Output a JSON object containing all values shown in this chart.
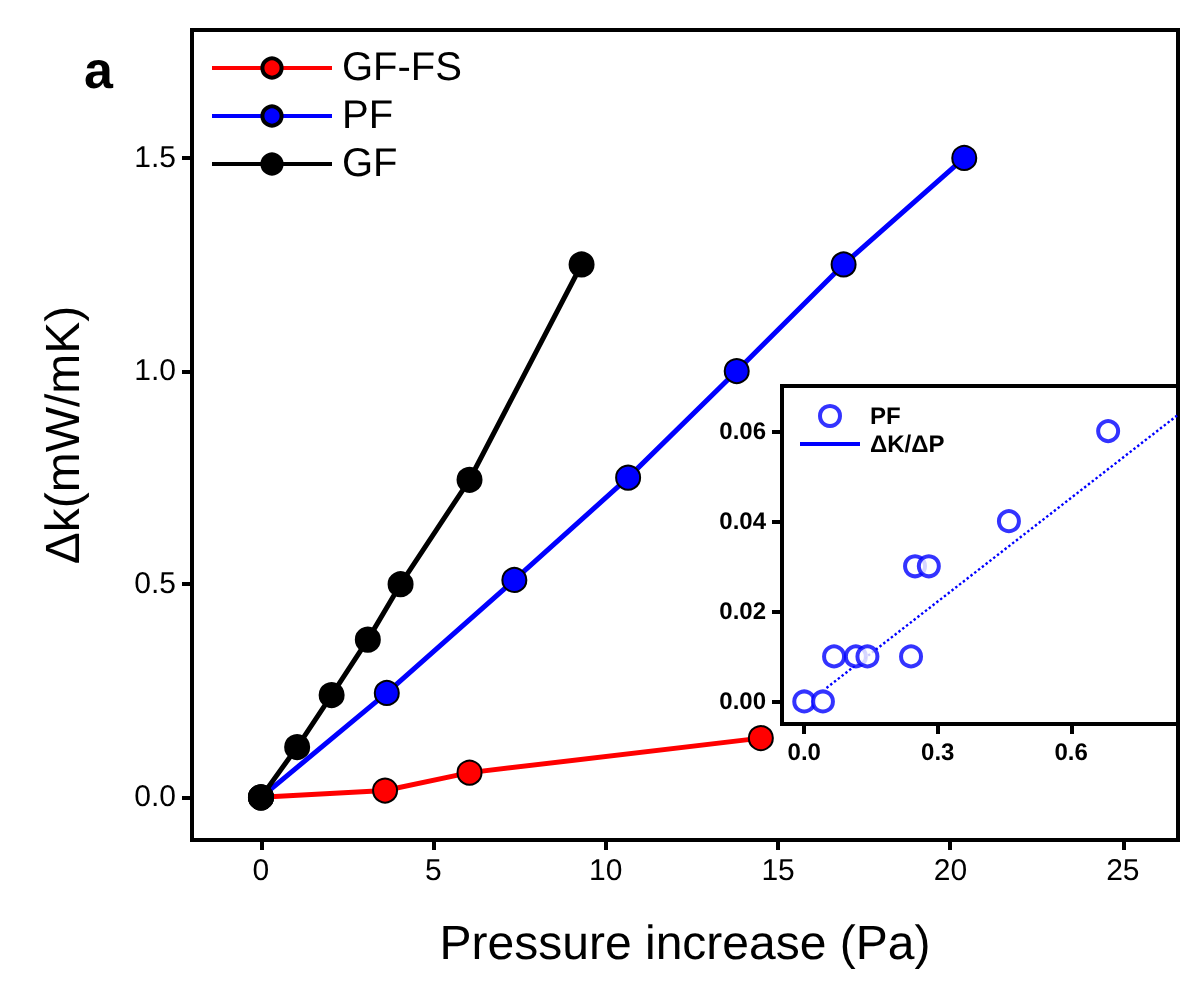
{
  "chart_data": [
    {
      "type": "line",
      "xlabel": "Pressure increase (Pa)",
      "ylabel": "Δk(mW/mK)",
      "annotations": [
        "a"
      ],
      "xlim": [
        -2,
        26.6
      ],
      "ylim": [
        -0.1,
        1.8
      ],
      "xticks": [
        0,
        5,
        10,
        15,
        20,
        25
      ],
      "yticks": [
        {
          "value": 0,
          "label": "0.0"
        },
        0.5,
        {
          "value": 1,
          "label": "1.0"
        },
        1.5
      ],
      "legend": "top left",
      "marker": "circle",
      "line_style": "solid",
      "grid": false,
      "series": [
        {
          "name": "GF-FS",
          "color": "#ff0000",
          "x": [
            0,
            3.6,
            6.05,
            14.5
          ],
          "values": [
            0,
            0.016,
            0.058,
            0.139
          ]
        },
        {
          "name": "PF",
          "color": "#0000ff",
          "x": [
            0,
            3.65,
            7.35,
            10.65,
            13.8,
            16.9,
            20.4
          ],
          "values": [
            0,
            0.245,
            0.51,
            0.75,
            1.0,
            1.25,
            1.5
          ]
        },
        {
          "name": "GF",
          "color": "#000000",
          "x": [
            0,
            1.05,
            2.05,
            3.1,
            4.05,
            6.05,
            9.3
          ],
          "values": [
            0,
            0.118,
            0.24,
            0.37,
            0.5,
            0.745,
            1.25
          ]
        }
      ]
    },
    {
      "type": "scatter",
      "xlim": [
        -0.05,
        0.84
      ],
      "ylim": [
        -0.005,
        0.07
      ],
      "xticks": [
        {
          "value": 0,
          "label": "0.0"
        },
        0.3,
        0.6
      ],
      "yticks": [
        {
          "value": 0,
          "label": "0.00"
        },
        {
          "value": 0.02,
          "label": "0.02"
        },
        {
          "value": 0.04,
          "label": "0.04"
        },
        {
          "value": 0.06,
          "label": "0.06"
        }
      ],
      "legend": "top left",
      "marker": "circle",
      "grid": false,
      "series": [
        {
          "name": "PF",
          "color": "#0000ff",
          "x": [
            0,
            0.042,
            0.067,
            0.116,
            0.142,
            0.24,
            0.249,
            0.28,
            0.46,
            0.683
          ],
          "values": [
            0,
            0,
            0.01,
            0.01,
            0.01,
            0.01,
            0.03,
            0.03,
            0.04,
            0.06
          ]
        },
        {
          "name": "ΔK/ΔP",
          "type": "line",
          "line_style": "dotted",
          "marker": "none",
          "color": "#0000ff",
          "x": [
            0.05,
            0.84
          ],
          "values": [
            0.003,
            0.0636
          ]
        }
      ]
    }
  ]
}
